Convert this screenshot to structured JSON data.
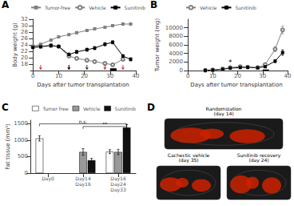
{
  "chart_data": [
    {
      "type": "line",
      "title": "A",
      "xlabel": "Days after tumor transplantation",
      "ylabel": "Body weight (g)",
      "x": [
        0,
        3,
        7,
        10,
        14,
        17,
        21,
        24,
        28,
        31,
        35,
        38
      ],
      "series": [
        {
          "name": "Tumor-free",
          "color": "#808080",
          "marker": "square",
          "values": [
            23.5,
            24.2,
            25.5,
            26.5,
            27.2,
            27.8,
            28.5,
            29.0,
            29.5,
            30.0,
            30.5,
            30.5
          ],
          "yerr": [
            0.25,
            0.25,
            0.3,
            0.35,
            0.35,
            0.35,
            0.35,
            0.35,
            0.35,
            0.35,
            0.35,
            0.35
          ]
        },
        {
          "name": "Vehicle",
          "color": "#808080",
          "marker": "open_circle",
          "values": [
            23.5,
            23.6,
            23.8,
            23.5,
            20.5,
            19.8,
            19.2,
            18.8,
            18.2,
            17.8,
            19.5,
            null
          ],
          "yerr": [
            0.25,
            0.25,
            0.3,
            0.35,
            0.45,
            0.5,
            0.5,
            0.5,
            0.5,
            0.5,
            0.5,
            null
          ]
        },
        {
          "name": "Sunitinib",
          "color": "#000000",
          "marker": "square",
          "values": [
            23.2,
            23.4,
            23.8,
            23.5,
            21.0,
            21.8,
            22.5,
            23.0,
            24.2,
            24.8,
            20.5,
            19.5
          ],
          "yerr": [
            0.25,
            0.25,
            0.3,
            0.35,
            0.5,
            0.5,
            0.5,
            0.5,
            0.5,
            0.5,
            0.5,
            0.5
          ]
        }
      ],
      "arrows": [
        {
          "x": 3,
          "color": "#cc0000"
        },
        {
          "x": 14,
          "color": "#cc0000"
        },
        {
          "x": 28,
          "color": "#cc0000"
        },
        {
          "x": 35,
          "color": "#cc0000"
        },
        {
          "x": 14,
          "color": "#000000"
        },
        {
          "x": 21,
          "color": "#000000"
        }
      ],
      "treatment_box": {
        "x": [
          30,
          32.5
        ],
        "y": [
          16,
          16.7
        ],
        "color": "#000000"
      },
      "xlim": [
        -1,
        40
      ],
      "xticks": [
        0,
        10,
        20,
        30,
        40
      ],
      "ylim": [
        16,
        32
      ],
      "yticks": [
        18,
        20,
        22,
        24,
        26,
        28,
        30,
        32
      ],
      "grid": false,
      "legend": "upper left"
    },
    {
      "type": "line",
      "title": "B",
      "xlabel": "Days after tumor transplantation",
      "ylabel": "Tumor weight (mg)",
      "x": [
        7,
        10,
        14,
        17,
        21,
        24,
        28,
        31,
        35,
        38
      ],
      "series": [
        {
          "name": "Vehicle",
          "color": "#808080",
          "marker": "open_circle",
          "values": [
            50,
            120,
            350,
            700,
            900,
            800,
            700,
            1400,
            5000,
            9500
          ],
          "yerr": [
            20,
            40,
            70,
            120,
            140,
            130,
            100,
            250,
            600,
            900
          ]
        },
        {
          "name": "Sunitinib",
          "color": "#000000",
          "marker": "square",
          "values": [
            50,
            120,
            300,
            550,
            700,
            750,
            650,
            900,
            2200,
            4200
          ],
          "yerr": [
            20,
            40,
            60,
            100,
            110,
            120,
            100,
            180,
            350,
            650
          ]
        }
      ],
      "annotations": [
        {
          "text": "*",
          "x": 17,
          "y": 1100
        }
      ],
      "treatment_box": {
        "x": [
          30,
          32.5
        ],
        "y": [
          0,
          240
        ],
        "color": "#000000"
      },
      "xlim": [
        -1,
        40
      ],
      "xticks": [
        0,
        10,
        20,
        30,
        40
      ],
      "ylim": [
        0,
        12000
      ],
      "yticks": [
        0,
        2000,
        4000,
        6000,
        8000,
        10000
      ],
      "grid": false,
      "legend": "upper left"
    },
    {
      "type": "bar",
      "title": "C",
      "ylabel": "Fat tissue (mm³)",
      "categories": [
        "Day0",
        "Day14\nDay16",
        "Day16\nDay24\nDay33"
      ],
      "series": [
        {
          "name": "Tumor free",
          "color": "#ffffff",
          "values": [
            1050,
            null,
            650
          ],
          "yerr": [
            80,
            null,
            60
          ]
        },
        {
          "name": "Vehicle",
          "color": "#999999",
          "values": [
            null,
            640,
            640
          ],
          "yerr": [
            null,
            100,
            80
          ]
        },
        {
          "name": "Sunitinib",
          "color": "#111111",
          "values": [
            null,
            390,
            1380
          ],
          "yerr": [
            null,
            55,
            90
          ]
        }
      ],
      "annotations": [
        {
          "text": "n.s.",
          "y": 1490,
          "from": "Day0",
          "to": "Day16\nDay24\nDay33"
        },
        {
          "text": "**",
          "y": 1410,
          "from": "Day14\nDay16",
          "to": "Day16\nDay24\nDay33"
        }
      ],
      "ylim": [
        0,
        1600
      ],
      "yticks": [
        0,
        500,
        1000,
        1500
      ],
      "grid": false,
      "legend": "upper right"
    },
    {
      "type": "image",
      "title": "D",
      "annotations": [
        "Randomization\n(day 14)",
        "Cachectic vehicle\n(day 35)",
        "Sunitinib recovery\n(day 24)"
      ]
    }
  ]
}
